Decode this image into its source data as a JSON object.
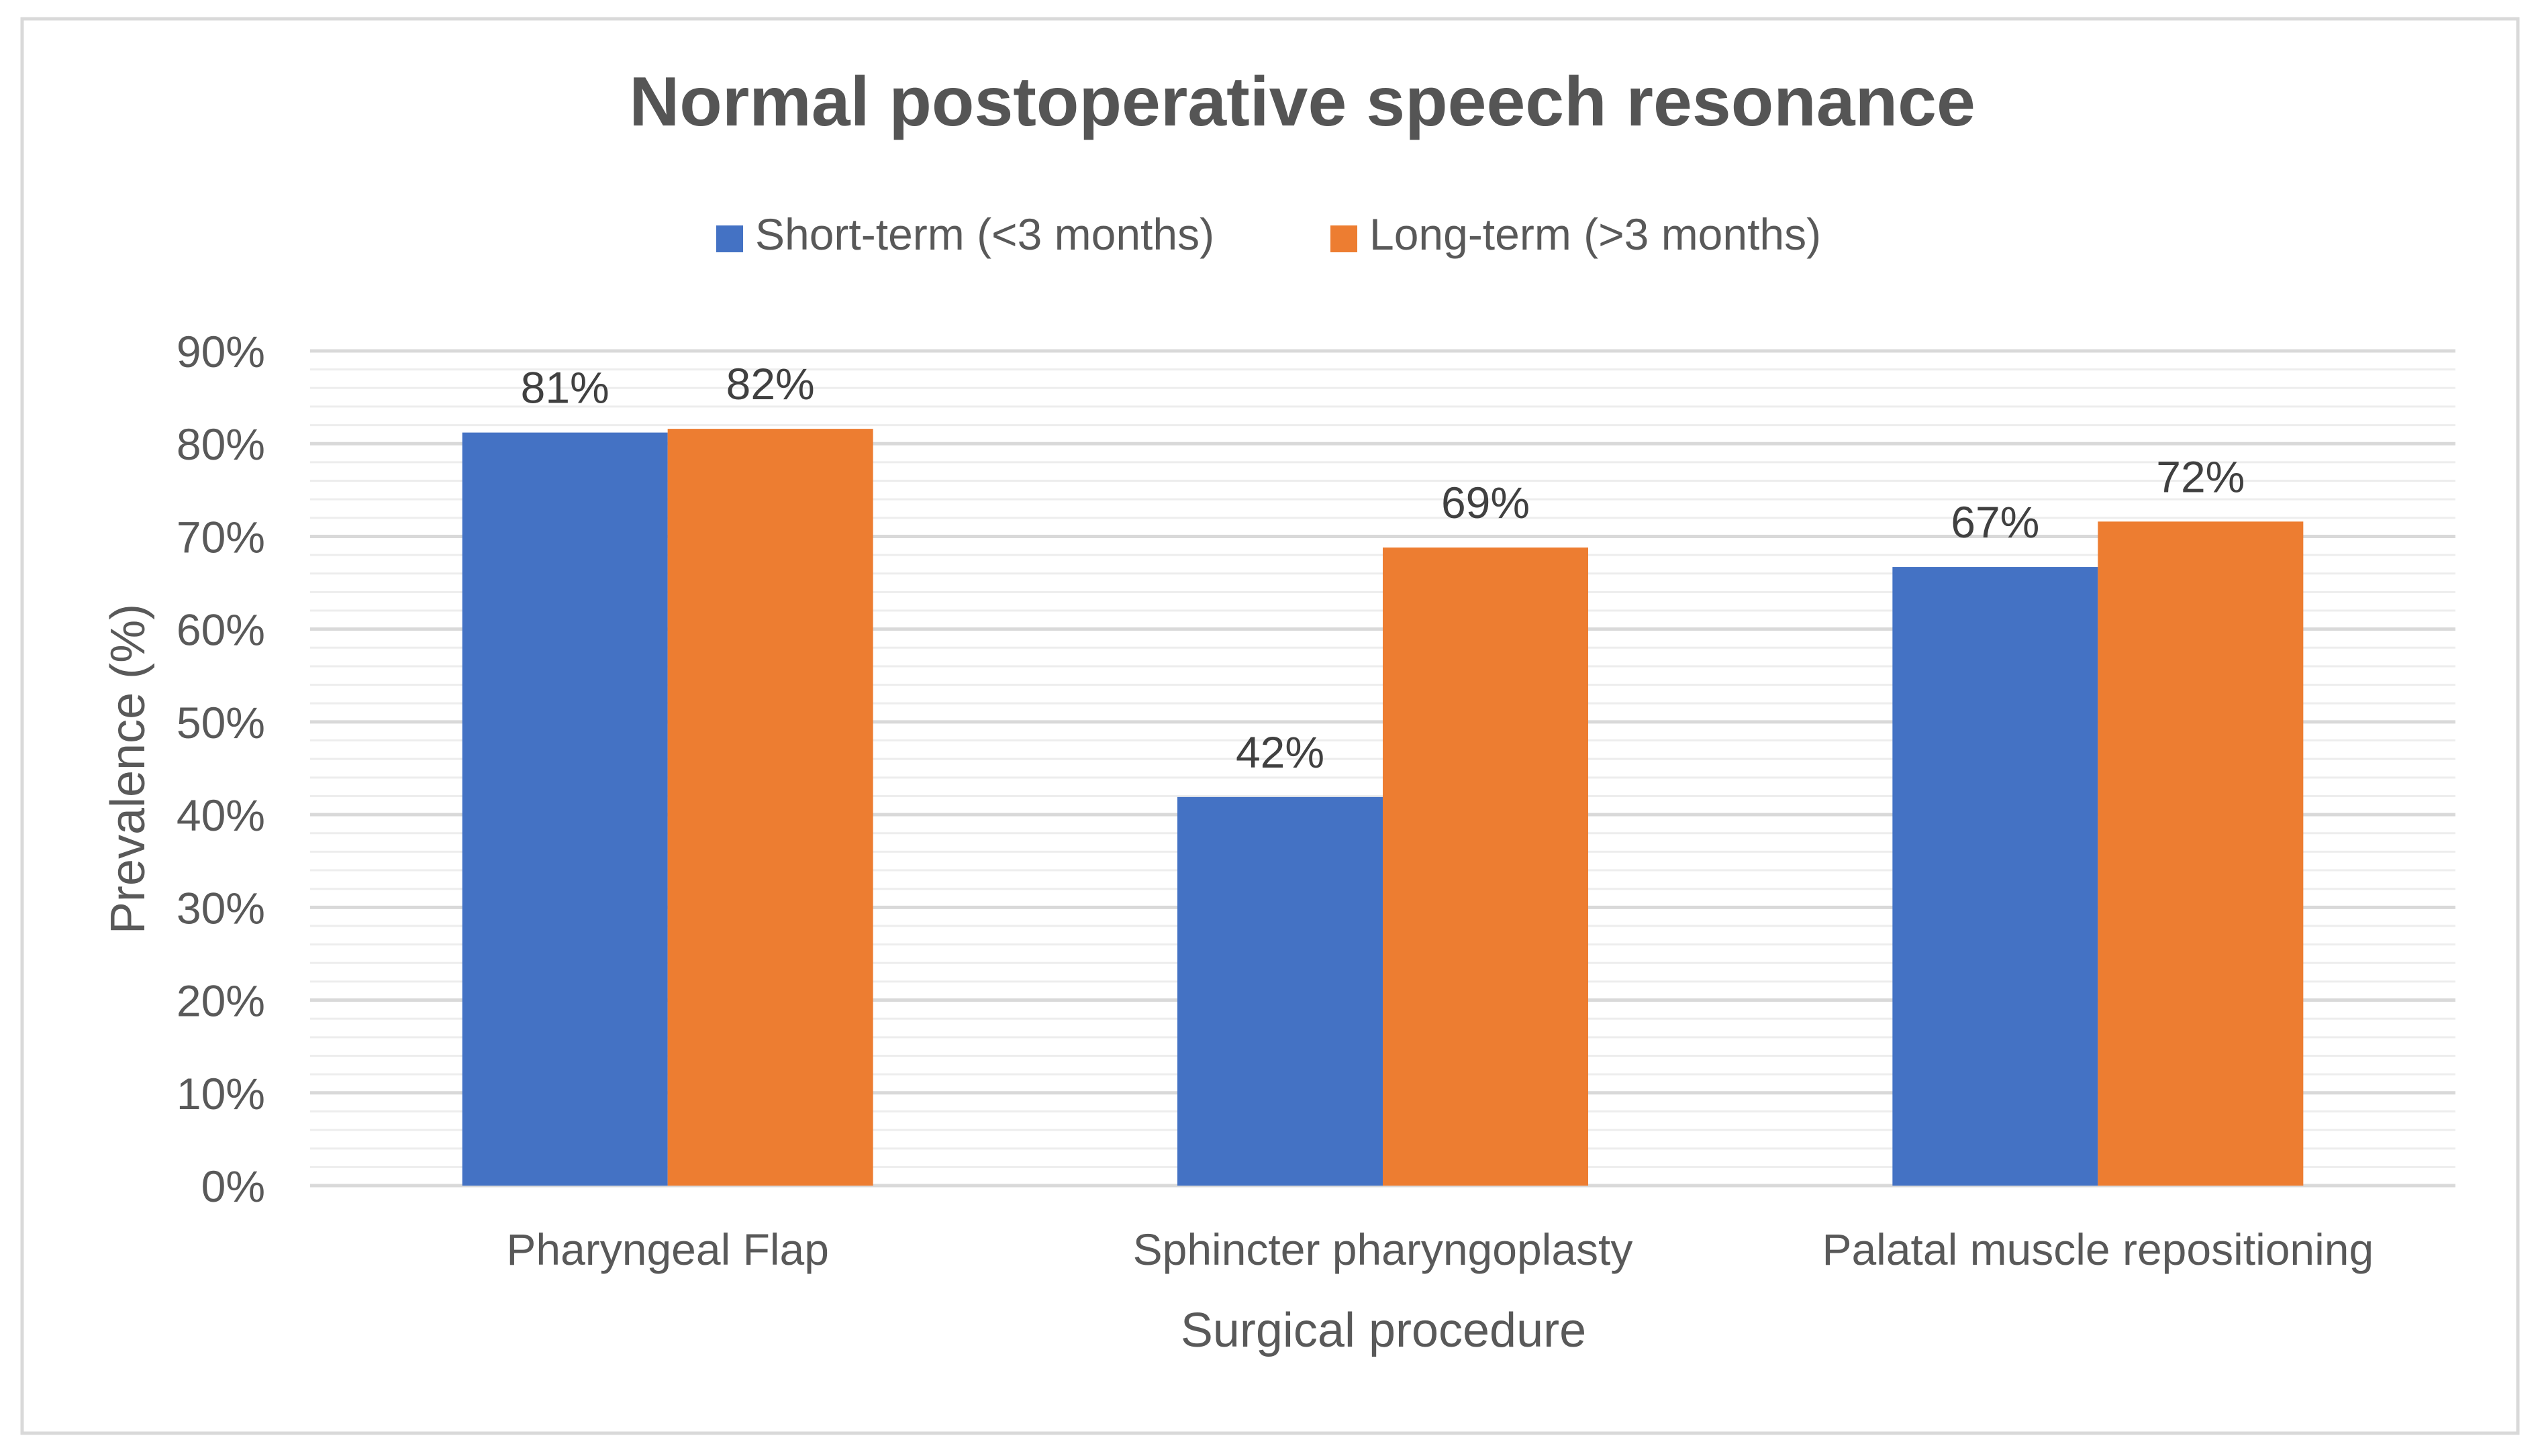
{
  "chart_data": {
    "type": "bar",
    "title": "Normal postoperative speech resonance",
    "xlabel": "Surgical procedure",
    "ylabel": "Prevalence (%)",
    "ylim": [
      0,
      90
    ],
    "y_major_step": 10,
    "y_minor_step": 2,
    "y_tick_suffix": "%",
    "grid": true,
    "legend_position": "top-center",
    "categories": [
      "Pharyngeal Flap",
      "Sphincter pharyngoplasty",
      "Palatal muscle repositioning"
    ],
    "series": [
      {
        "name": "Short-term (<3 months)",
        "color": "#4472C4",
        "values": [
          81.2,
          41.9,
          66.7
        ],
        "labels": [
          "81%",
          "42%",
          "67%"
        ]
      },
      {
        "name": "Long-term (>3 months)",
        "color": "#ED7D31",
        "values": [
          81.6,
          68.8,
          71.6
        ],
        "labels": [
          "82%",
          "69%",
          "72%"
        ]
      }
    ]
  },
  "colors": {
    "text": "#595959",
    "title": "#555555",
    "data_label": "#404040",
    "gridline_major": "#D9D9D9",
    "gridline_minor": "#EDEDED",
    "frame": "#D9D9D9"
  }
}
